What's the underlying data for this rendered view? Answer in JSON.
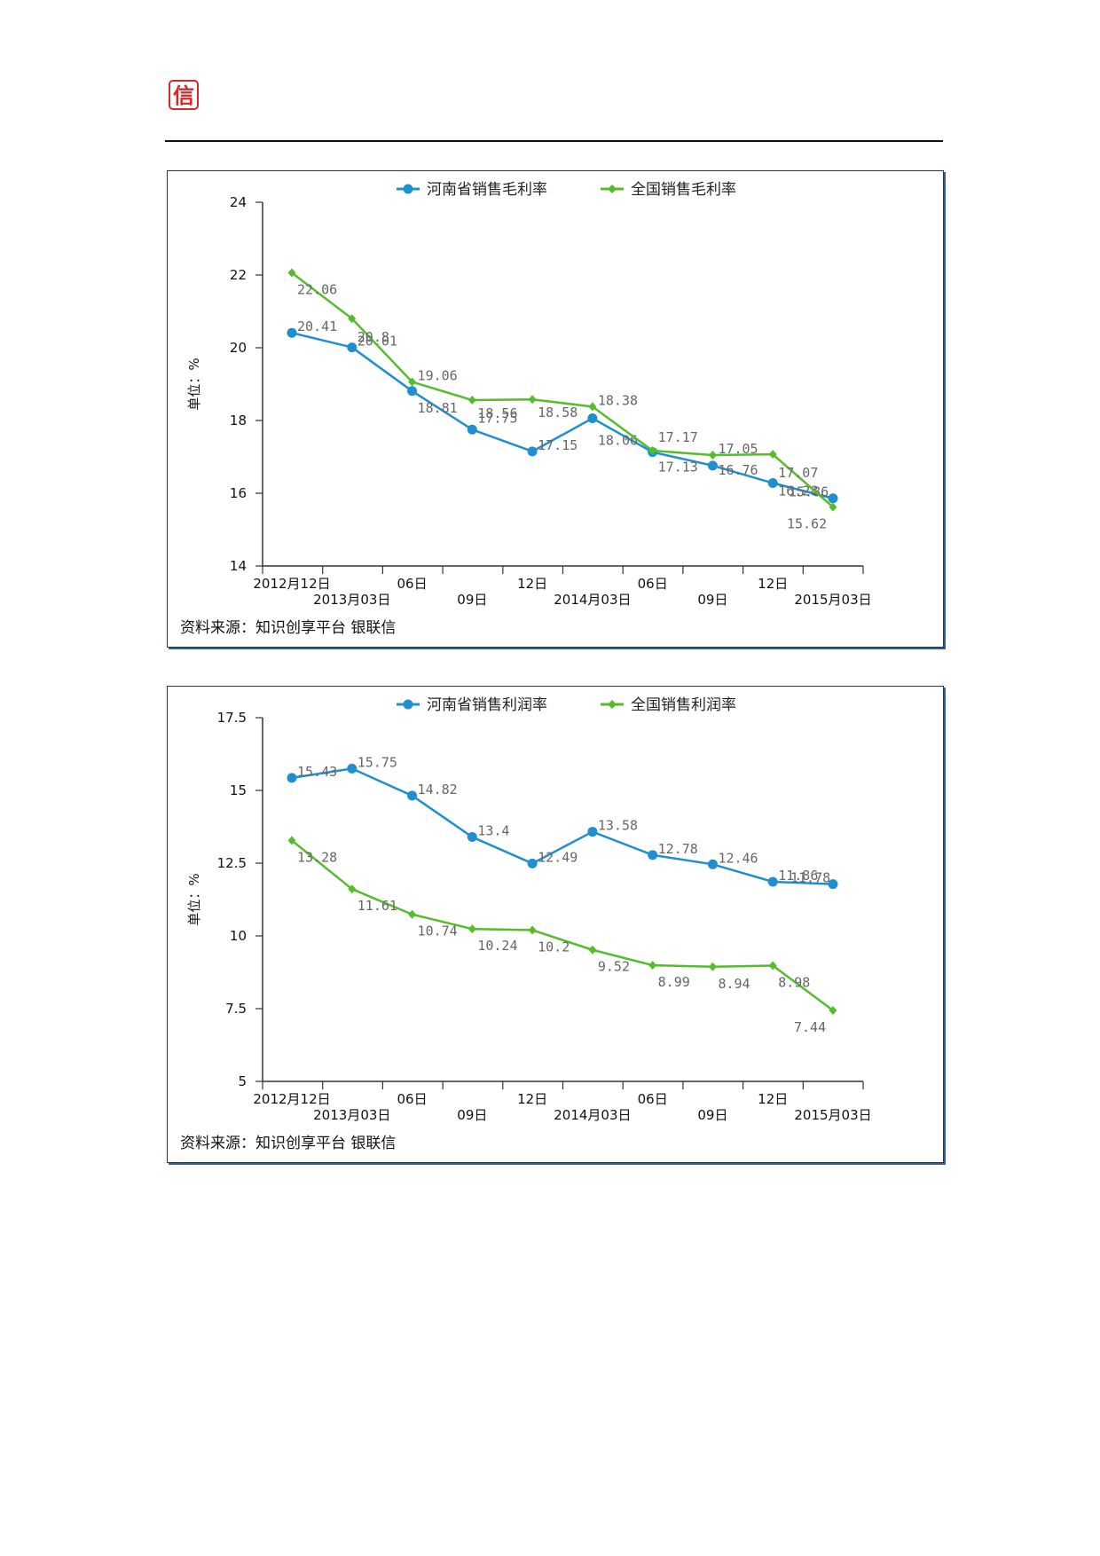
{
  "header": {
    "logo_glyph": "信",
    "logo_color": "#d6282b"
  },
  "colors": {
    "blue": "#1f8fd0",
    "green": "#55bd2b"
  },
  "chart_data": [
    {
      "type": "line",
      "x": [
        "2012月12日",
        "2013月03日",
        "06日",
        "09日",
        "12日",
        "2014月03日",
        "06日",
        "09日",
        "12日",
        "2015月03日"
      ],
      "series": [
        {
          "name": "河南省销售毛利率",
          "marker": "circle",
          "values": [
            20.41,
            20.01,
            18.81,
            17.75,
            17.15,
            18.06,
            17.13,
            16.76,
            16.28,
            15.86
          ],
          "labels": [
            "20.41",
            "20.01",
            "18.81",
            "17.75",
            "17.15",
            "18.06",
            "17.13",
            "16.76",
            "16.28",
            "15.86"
          ]
        },
        {
          "name": "全国销售毛利率",
          "marker": "diamond",
          "values": [
            22.06,
            20.8,
            19.06,
            18.56,
            18.58,
            18.38,
            17.17,
            17.05,
            17.07,
            15.62
          ],
          "labels": [
            "22.06",
            "20.8",
            "19.06",
            "18.56",
            "18.58",
            "18.38",
            "17.17",
            "17.05",
            "17.07",
            "15.62"
          ]
        }
      ],
      "yticks": [
        "24",
        "22",
        "20",
        "18",
        "16",
        "14"
      ],
      "ylim": [
        14,
        24
      ],
      "ylabel": "单位：%",
      "legend_position": "top",
      "source": "资料来源：知识创享平台 银联信"
    },
    {
      "type": "line",
      "x": [
        "2012月12日",
        "2013月03日",
        "06日",
        "09日",
        "12日",
        "2014月03日",
        "06日",
        "09日",
        "12日",
        "2015月03日"
      ],
      "series": [
        {
          "name": "河南省销售利润率",
          "marker": "circle",
          "values": [
            15.43,
            15.75,
            14.82,
            13.4,
            12.49,
            13.58,
            12.78,
            12.46,
            11.86,
            11.78
          ],
          "labels": [
            "15.43",
            "15.75",
            "14.82",
            "13.4",
            "12.49",
            "13.58",
            "12.78",
            "12.46",
            "11.86",
            "11.78"
          ]
        },
        {
          "name": "全国销售利润率",
          "marker": "diamond",
          "values": [
            13.28,
            11.61,
            10.74,
            10.24,
            10.2,
            9.52,
            8.99,
            8.94,
            8.98,
            7.44
          ],
          "labels": [
            "13.28",
            "11.61",
            "10.74",
            "10.24",
            "10.2",
            "9.52",
            "8.99",
            "8.94",
            "8.98",
            "7.44"
          ]
        }
      ],
      "yticks": [
        "17.5",
        "15",
        "12.5",
        "10",
        "7.5",
        "5"
      ],
      "ylim": [
        5,
        17.5
      ],
      "ylabel": "单位：%",
      "legend_position": "top",
      "source": "资料来源：知识创享平台 银联信"
    }
  ]
}
